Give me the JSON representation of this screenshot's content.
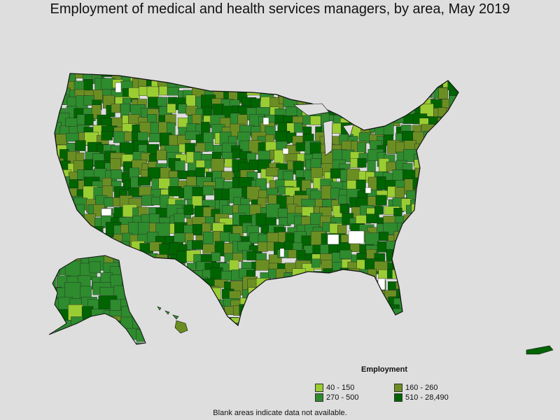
{
  "title": "Employment of medical and health services managers, by area, May 2019",
  "legend": {
    "title": "Employment",
    "items": [
      {
        "label": "40 - 150",
        "color": "#9acd32"
      },
      {
        "label": "160 - 260",
        "color": "#6b8e23"
      },
      {
        "label": "270 - 500",
        "color": "#2e8b2e"
      },
      {
        "label": "510 - 28,490",
        "color": "#006400"
      }
    ]
  },
  "note": "Blank areas indicate data not available.",
  "colors": {
    "background": "#dedede",
    "border": "#222222",
    "no_data": "#ffffff"
  }
}
